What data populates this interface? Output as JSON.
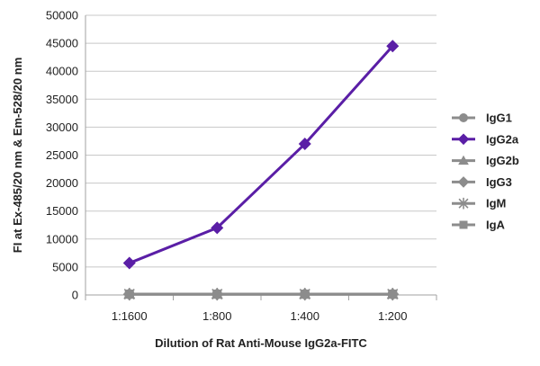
{
  "chart_data": {
    "type": "line",
    "categories": [
      "1:1600",
      "1:800",
      "1:400",
      "1:200"
    ],
    "xlabel": "Dilution of Rat Anti-Mouse IgG2a-FITC",
    "ylabel": "FI at Ex-485/20 nm & Em-528/20 nm",
    "ylim": [
      0,
      50000
    ],
    "yticks": [
      0,
      5000,
      10000,
      15000,
      20000,
      25000,
      30000,
      35000,
      40000,
      45000,
      50000
    ],
    "grid": "horizontal",
    "legend_position": "right",
    "series": [
      {
        "name": "IgG1",
        "values": [
          150,
          150,
          150,
          150
        ],
        "color": "#8c8c8c",
        "marker": "circle"
      },
      {
        "name": "IgG2a",
        "values": [
          5700,
          12000,
          27000,
          44500
        ],
        "color": "#5a1ea6",
        "marker": "diamond"
      },
      {
        "name": "IgG2b",
        "values": [
          150,
          150,
          150,
          150
        ],
        "color": "#8c8c8c",
        "marker": "triangle"
      },
      {
        "name": "IgG3",
        "values": [
          150,
          150,
          150,
          150
        ],
        "color": "#8c8c8c",
        "marker": "diamond"
      },
      {
        "name": "IgM",
        "values": [
          150,
          150,
          150,
          150
        ],
        "color": "#8c8c8c",
        "marker": "star"
      },
      {
        "name": "IgA",
        "values": [
          150,
          150,
          150,
          150
        ],
        "color": "#8c8c8c",
        "marker": "square"
      }
    ]
  }
}
